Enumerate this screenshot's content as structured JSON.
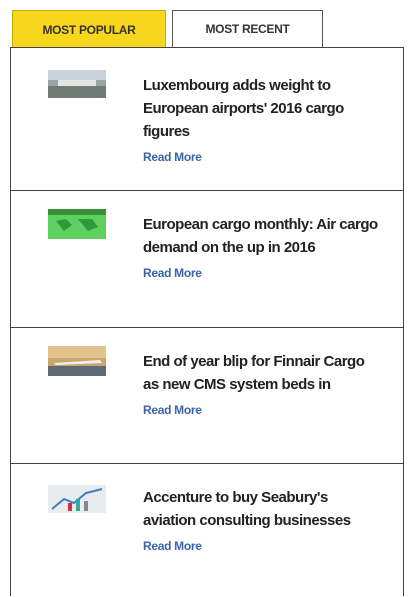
{
  "tabs": [
    {
      "label": "MOST POPULAR"
    },
    {
      "label": "MOST RECENT"
    }
  ],
  "articles": [
    {
      "title": "Luxembourg adds weight to European airports' 2016 cargo figures",
      "link": "Read More"
    },
    {
      "title": "European cargo monthly: Air cargo demand on the up in 2016",
      "link": "Read More"
    },
    {
      "title": "End of year blip for Finnair Cargo as new CMS system beds in",
      "link": "Read More"
    },
    {
      "title": "Accenture to buy Seabury's aviation consulting businesses",
      "link": "Read More"
    }
  ]
}
